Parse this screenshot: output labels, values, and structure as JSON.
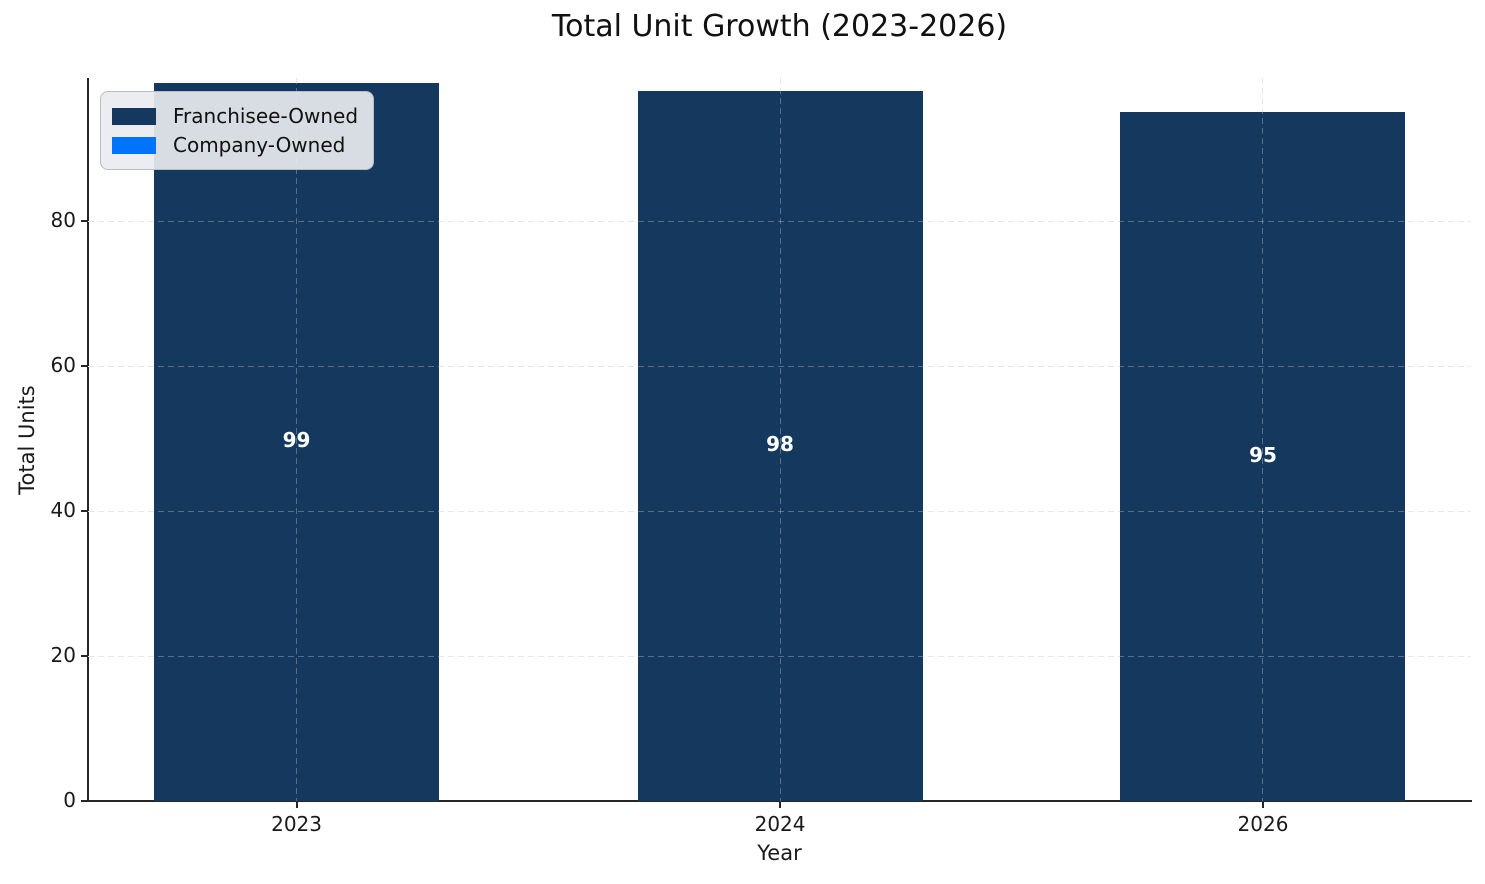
{
  "chart_data": {
    "type": "bar",
    "title": "Total Unit Growth (2023-2026)",
    "xlabel": "Year",
    "ylabel": "Total Units",
    "categories": [
      "2023",
      "2024",
      "2026"
    ],
    "series": [
      {
        "name": "Franchisee-Owned",
        "color": "#15395e",
        "values": [
          99,
          98,
          95
        ]
      },
      {
        "name": "Company-Owned",
        "color": "#0073ff",
        "values": [
          0,
          0,
          0
        ]
      }
    ],
    "bar_labels": [
      "99",
      "98",
      "95"
    ],
    "yticks": [
      0,
      20,
      40,
      60,
      80
    ],
    "ylim": [
      0,
      100
    ],
    "grid": true,
    "grid_style": "dashed",
    "legend_position": "upper left",
    "background_color": "#ffffff",
    "bar_label_color": "#ffffff"
  }
}
